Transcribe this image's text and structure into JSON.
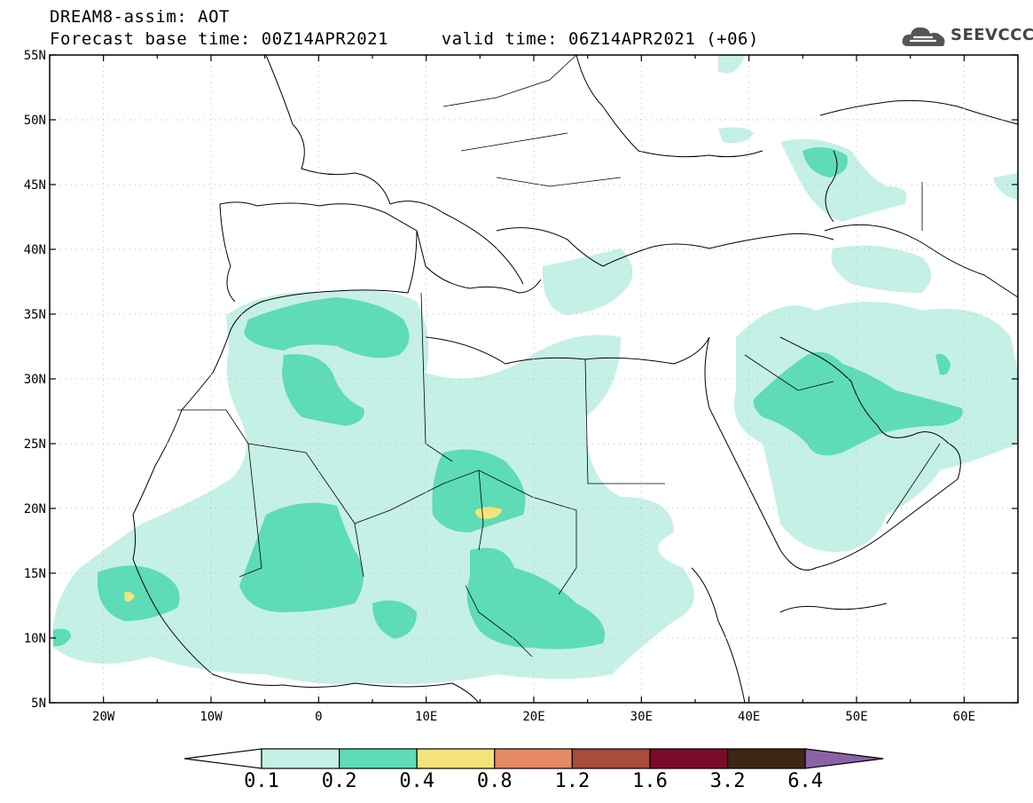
{
  "title": {
    "line1": "DREAM8-assim: AOT",
    "line2": "Forecast base time: 00Z14APR2021     valid time: 06Z14APR2021 (+06)"
  },
  "logo": {
    "text": "SEEVCCC",
    "icon": "cloud-icon"
  },
  "map": {
    "projection": "cylindrical-equidistant",
    "lon_range": [
      -25,
      65
    ],
    "lat_range": [
      5,
      55
    ],
    "lat_ticks": [
      {
        "value": 55,
        "label": "55N"
      },
      {
        "value": 50,
        "label": "50N"
      },
      {
        "value": 45,
        "label": "45N"
      },
      {
        "value": 40,
        "label": "40N"
      },
      {
        "value": 35,
        "label": "35N"
      },
      {
        "value": 30,
        "label": "30N"
      },
      {
        "value": 25,
        "label": "25N"
      },
      {
        "value": 20,
        "label": "20N"
      },
      {
        "value": 15,
        "label": "15N"
      },
      {
        "value": 10,
        "label": "10N"
      },
      {
        "value": 5,
        "label": "5N"
      }
    ],
    "lon_ticks": [
      {
        "value": -20,
        "label": "20W"
      },
      {
        "value": -10,
        "label": "10W"
      },
      {
        "value": 0,
        "label": "0"
      },
      {
        "value": 10,
        "label": "10E"
      },
      {
        "value": 20,
        "label": "20E"
      },
      {
        "value": 30,
        "label": "30E"
      },
      {
        "value": 40,
        "label": "40E"
      },
      {
        "value": 50,
        "label": "50E"
      },
      {
        "value": 60,
        "label": "60E"
      }
    ],
    "grid": true
  },
  "colorbar": {
    "labels": [
      "0.1",
      "0.2",
      "0.4",
      "0.8",
      "1.2",
      "1.6",
      "3.2",
      "6.4"
    ],
    "colors": [
      "#ffffff",
      "#c5f0e6",
      "#5ddcb5",
      "#f5e37a",
      "#e58a63",
      "#a94b3d",
      "#7a0a2a",
      "#3d2613",
      "#8b62a6"
    ]
  }
}
